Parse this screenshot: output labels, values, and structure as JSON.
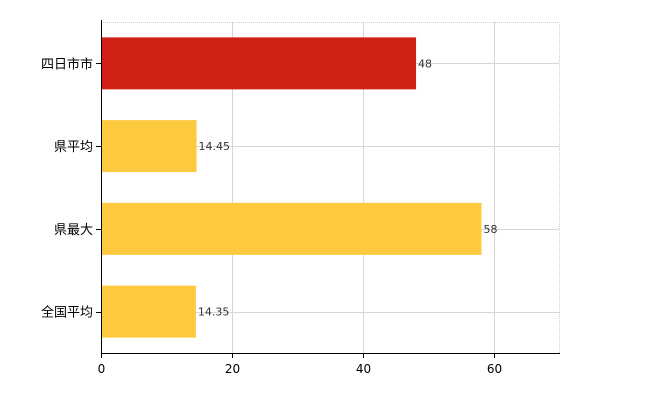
{
  "chart_data": {
    "type": "bar",
    "orientation": "horizontal",
    "categories": [
      "四日市市",
      "県平均",
      "県最大",
      "全国平均"
    ],
    "values": [
      48,
      14.45,
      58,
      14.35
    ],
    "value_labels": [
      "48",
      "14.45",
      "58",
      "14.35"
    ],
    "bar_colors": [
      "#d12015",
      "#fdc93e",
      "#fdc93e",
      "#fdc93e"
    ],
    "xlim": [
      0,
      70
    ],
    "x_ticks": [
      0,
      20,
      40,
      60
    ],
    "x_tick_labels": [
      "0",
      "20",
      "40",
      "60"
    ],
    "grid": true,
    "title": "",
    "xlabel": "",
    "ylabel": ""
  }
}
